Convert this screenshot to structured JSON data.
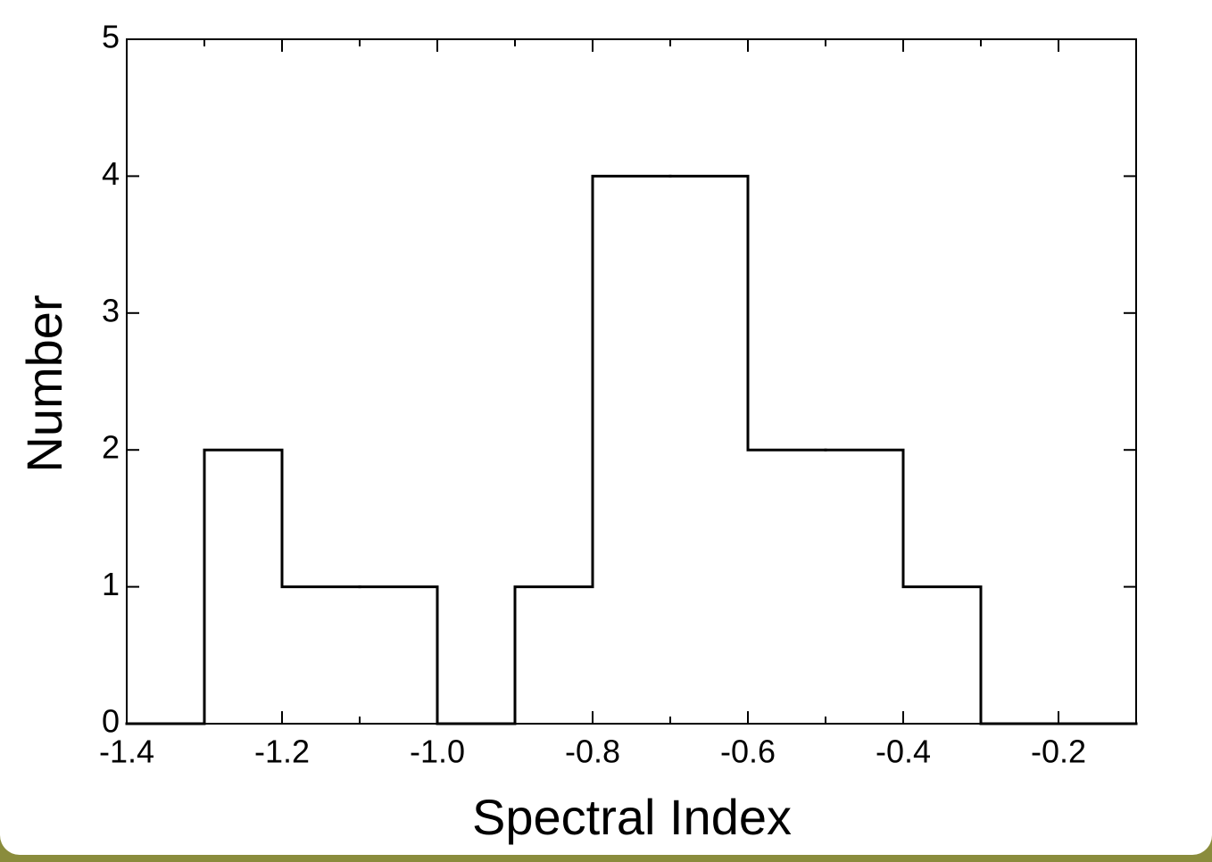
{
  "chart_data": {
    "type": "histogram",
    "xlabel": "Spectral Index",
    "ylabel": "Number",
    "bins": [
      -1.4,
      -1.3,
      -1.2,
      -1.1,
      -1.0,
      -0.9,
      -0.8,
      -0.7,
      -0.6,
      -0.5,
      -0.4,
      -0.3,
      -0.2,
      -0.1
    ],
    "counts": [
      0,
      2,
      1,
      1,
      0,
      1,
      4,
      4,
      2,
      2,
      1,
      0,
      0
    ],
    "color": "#000000",
    "xlim": [
      -1.4,
      -0.1
    ],
    "ylim": [
      0,
      5
    ],
    "xticks": [
      -1.4,
      -1.2,
      {
        "value": -1.0,
        "label": "-1.0"
      },
      -0.8,
      -0.6,
      -0.4,
      -0.2
    ],
    "yticks": [
      0,
      1,
      2,
      3,
      4,
      5
    ]
  }
}
